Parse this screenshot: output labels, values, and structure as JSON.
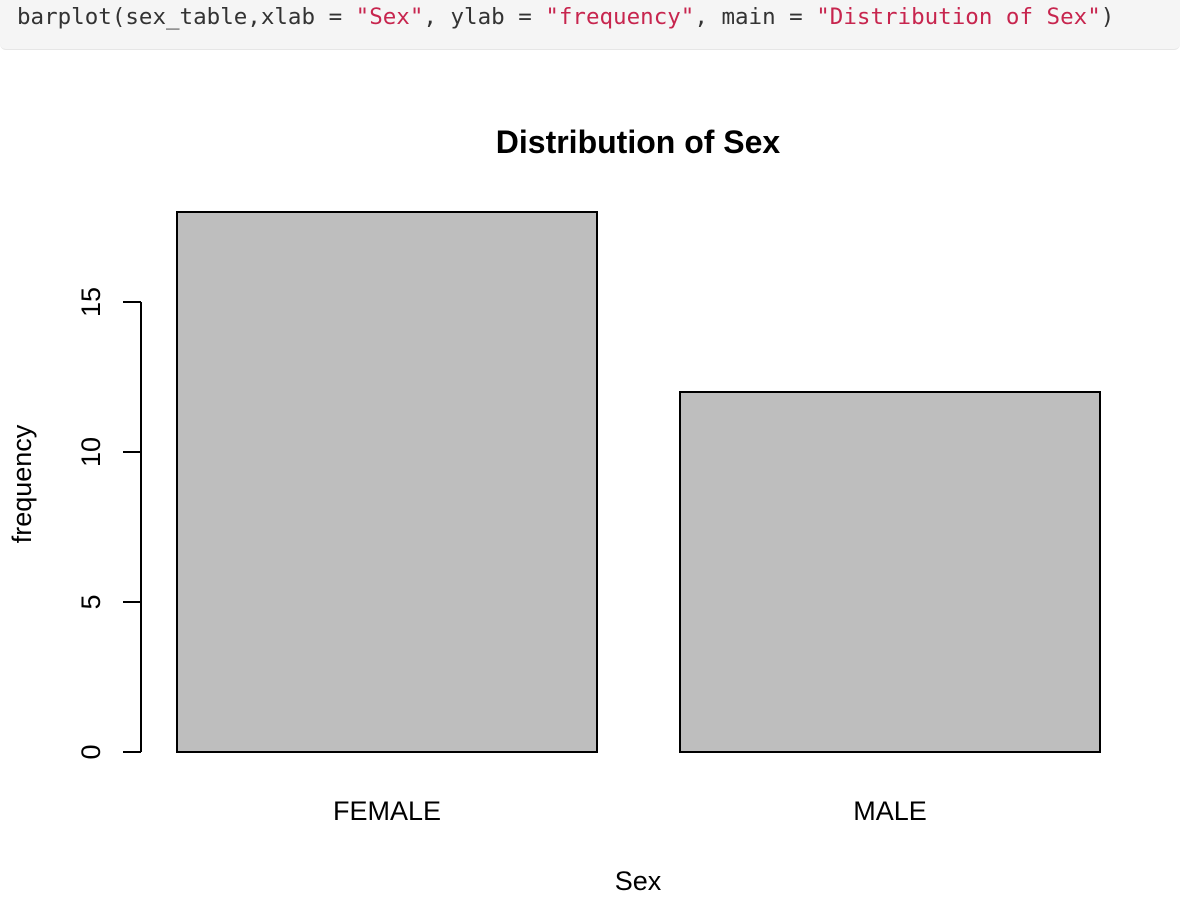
{
  "code": {
    "function": "barplot",
    "open_paren": "(",
    "arg_data": "sex_table",
    "comma1": ",",
    "arg_xlab_name": "xlab",
    "eq1": " = ",
    "xlab_value": "\"Sex\"",
    "comma2": ", ",
    "arg_ylab_name": "ylab",
    "eq2": " = ",
    "ylab_value": "\"frequency\"",
    "comma3": ", ",
    "arg_main_name": "main",
    "eq3": " = ",
    "main_value": "\"Distribution of Sex\"",
    "close_paren": ")",
    "string_color": "#c7254e",
    "text_color": "#333333",
    "background_color": "#f5f5f5"
  },
  "chart_data": {
    "type": "bar",
    "title": "Distribution of Sex",
    "xlabel": "Sex",
    "ylabel": "frequency",
    "categories": [
      "FEMALE",
      "MALE"
    ],
    "values": [
      18,
      12
    ],
    "ylim": [
      0,
      18
    ],
    "yticks": [
      "0",
      "5",
      "10",
      "15"
    ],
    "ytick_values": [
      0,
      5,
      10,
      15
    ],
    "bar_fill": "#bebebe",
    "bar_stroke": "#000000",
    "grid": false,
    "legend": "none"
  }
}
